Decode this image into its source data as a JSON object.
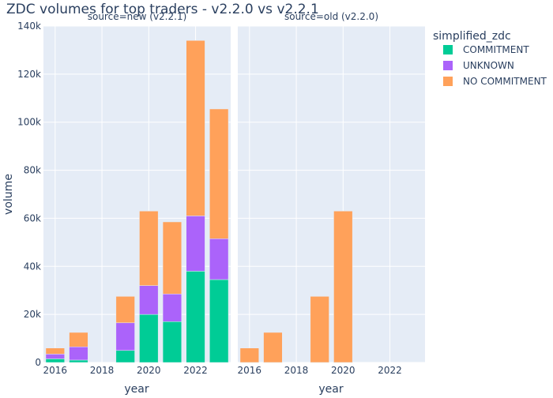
{
  "chart_data": {
    "type": "bar",
    "title": "ZDC volumes for top traders - v2.2.0 vs v2.2.1",
    "xlabel": "year",
    "ylabel": "volume",
    "ylim": [
      0,
      140000
    ],
    "y_ticks": [
      0,
      20000,
      40000,
      60000,
      80000,
      100000,
      120000,
      140000
    ],
    "y_tick_labels": [
      "0",
      "20k",
      "40k",
      "60k",
      "80k",
      "100k",
      "120k",
      "140k"
    ],
    "x_range": [
      2015.5,
      2023.5
    ],
    "x_ticks": [
      2016,
      2018,
      2020,
      2022
    ],
    "x_tick_labels": [
      "2016",
      "2018",
      "2020",
      "2022"
    ],
    "grid": true,
    "barmode": "stack",
    "legend": {
      "title": "simplified_zdc",
      "placement": "right",
      "entries": [
        {
          "name": "COMMITMENT",
          "color": "#00CC96"
        },
        {
          "name": "UNKNOWN",
          "color": "#AB63FA"
        },
        {
          "name": "NO COMMITMENT",
          "color": "#FFA15A"
        }
      ]
    },
    "facets": [
      {
        "label": "source=new (v2.2.1)",
        "x": [
          2016,
          2017,
          2019,
          2020,
          2021,
          2022,
          2023
        ],
        "series": [
          {
            "name": "COMMITMENT",
            "color": "#00CC96",
            "values": [
              1500,
              1000,
              5000,
              20000,
              17000,
              38000,
              34500
            ]
          },
          {
            "name": "UNKNOWN",
            "color": "#AB63FA",
            "values": [
              2000,
              5500,
              11500,
              12000,
              11500,
              23000,
              17000
            ]
          },
          {
            "name": "NO COMMITMENT",
            "color": "#FFA15A",
            "values": [
              2500,
              6000,
              11000,
              31000,
              30000,
              73000,
              54000
            ]
          }
        ]
      },
      {
        "label": "source=old (v2.2.0)",
        "x": [
          2016,
          2017,
          2019,
          2020
        ],
        "series": [
          {
            "name": "COMMITMENT",
            "color": "#00CC96",
            "values": [
              0,
              0,
              0,
              0
            ]
          },
          {
            "name": "UNKNOWN",
            "color": "#AB63FA",
            "values": [
              0,
              0,
              0,
              0
            ]
          },
          {
            "name": "NO COMMITMENT",
            "color": "#FFA15A",
            "values": [
              6000,
              12500,
              27500,
              63000
            ]
          }
        ]
      }
    ]
  }
}
